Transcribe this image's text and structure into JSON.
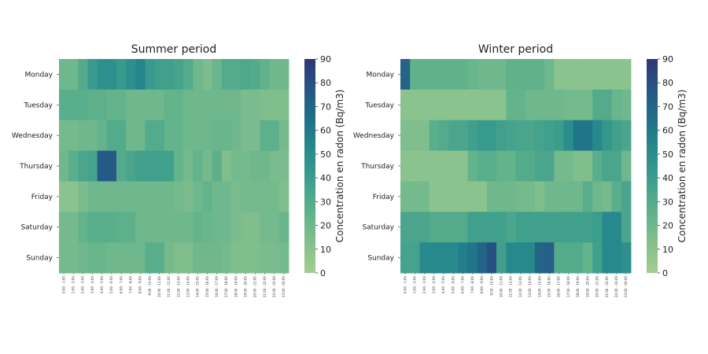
{
  "chart_data": [
    {
      "type": "heatmap",
      "title": "Summer period",
      "rows": [
        "Monday",
        "Tuesday",
        "Wednesday",
        "Thursday",
        "Friday",
        "Saturday",
        "Sunday"
      ],
      "columns": [
        "0:00 - 1:00",
        "1:00 - 2:00",
        "2:00 - 3:00",
        "3:00 - 4:00",
        "4:00 - 5:00",
        "5:00 - 6:00",
        "6:00 - 7:00",
        "7:00 - 8:00",
        "8:00 - 9:00",
        "9:00 - 10:00",
        "10:00 - 11:00",
        "11:00 - 12:00",
        "12:00 - 13:00",
        "13:00 - 14:00",
        "14:00 - 15:00",
        "15:00 - 16:00",
        "16:00 - 17:00",
        "17:00 - 18:00",
        "18:00 - 19:00",
        "19:00 - 20:00",
        "20:00 - 21:00",
        "21:00 - 22:00",
        "22:00 - 23:00",
        "23:00 - 00:00"
      ],
      "values": [
        [
          20,
          20,
          30,
          42,
          48,
          48,
          42,
          48,
          55,
          42,
          38,
          38,
          35,
          30,
          20,
          15,
          22,
          30,
          30,
          32,
          30,
          25,
          20,
          20
        ],
        [
          28,
          28,
          28,
          26,
          26,
          24,
          24,
          20,
          20,
          20,
          20,
          24,
          24,
          20,
          20,
          20,
          20,
          20,
          20,
          16,
          16,
          14,
          14,
          14
        ],
        [
          18,
          18,
          20,
          20,
          24,
          30,
          30,
          20,
          20,
          30,
          30,
          24,
          24,
          20,
          20,
          20,
          22,
          22,
          20,
          16,
          16,
          26,
          26,
          18
        ],
        [
          20,
          28,
          34,
          36,
          75,
          75,
          30,
          34,
          38,
          38,
          38,
          38,
          24,
          18,
          24,
          18,
          26,
          14,
          18,
          18,
          20,
          20,
          16,
          16
        ],
        [
          10,
          10,
          16,
          20,
          20,
          20,
          20,
          20,
          20,
          20,
          20,
          20,
          18,
          16,
          20,
          24,
          20,
          20,
          16,
          18,
          18,
          18,
          18,
          14
        ],
        [
          18,
          18,
          24,
          28,
          28,
          28,
          26,
          26,
          20,
          20,
          20,
          20,
          20,
          20,
          24,
          22,
          20,
          20,
          16,
          14,
          14,
          18,
          18,
          22
        ],
        [
          18,
          18,
          20,
          22,
          22,
          20,
          20,
          20,
          20,
          28,
          28,
          18,
          14,
          14,
          20,
          20,
          20,
          18,
          14,
          14,
          14,
          16,
          16,
          18
        ]
      ],
      "colorbar": {
        "label": "Concentration en radon (Bq/m3)",
        "ticks": [
          0,
          10,
          20,
          30,
          40,
          50,
          60,
          70,
          80,
          90
        ],
        "range": [
          0,
          90
        ]
      }
    },
    {
      "type": "heatmap",
      "title": "Winter period",
      "rows": [
        "Monday",
        "Tuesday",
        "Wednesday",
        "Thursday",
        "Friday",
        "Saturday",
        "Sunday"
      ],
      "columns": [
        "0:00 - 1:00",
        "1:00 - 2:00",
        "2:00 - 3:00",
        "3:00 - 4:00",
        "4:00 - 5:00",
        "5:00 - 6:00",
        "6:00 - 7:00",
        "7:00 - 8:00",
        "8:00 - 9:00",
        "9:00 - 10:00",
        "10:00 - 11:00",
        "11:00 - 12:00",
        "12:00 - 13:00",
        "13:00 - 14:00",
        "14:00 - 15:00",
        "15:00 - 16:00",
        "16:00 - 17:00",
        "17:00 - 18:00",
        "18:00 - 19:00",
        "19:00 - 20:00",
        "20:00 - 21:00",
        "21:00 - 22:00",
        "22:00 - 23:00",
        "23:00 - 00:00"
      ],
      "values": [
        [
          70,
          25,
          25,
          25,
          25,
          25,
          25,
          22,
          20,
          20,
          20,
          25,
          25,
          25,
          25,
          20,
          10,
          10,
          10,
          10,
          10,
          10,
          10,
          10
        ],
        [
          10,
          10,
          10,
          10,
          10,
          10,
          10,
          10,
          10,
          10,
          10,
          24,
          24,
          20,
          20,
          20,
          20,
          18,
          18,
          18,
          30,
          30,
          22,
          20
        ],
        [
          14,
          14,
          14,
          28,
          30,
          34,
          34,
          38,
          42,
          42,
          38,
          36,
          34,
          34,
          36,
          38,
          40,
          50,
          62,
          62,
          52,
          44,
          38,
          34
        ],
        [
          10,
          10,
          10,
          10,
          10,
          10,
          10,
          24,
          28,
          28,
          24,
          24,
          30,
          30,
          34,
          34,
          18,
          18,
          14,
          14,
          28,
          34,
          34,
          20
        ],
        [
          18,
          18,
          18,
          10,
          10,
          10,
          10,
          10,
          10,
          20,
          20,
          20,
          18,
          18,
          14,
          20,
          20,
          20,
          20,
          28,
          20,
          18,
          28,
          34
        ],
        [
          34,
          34,
          34,
          30,
          30,
          30,
          30,
          38,
          38,
          38,
          38,
          34,
          38,
          38,
          38,
          38,
          38,
          38,
          38,
          38,
          40,
          52,
          52,
          34
        ],
        [
          36,
          36,
          52,
          52,
          52,
          52,
          58,
          62,
          70,
          80,
          38,
          52,
          52,
          52,
          70,
          72,
          30,
          30,
          30,
          24,
          38,
          52,
          52,
          48
        ]
      ],
      "colorbar": {
        "label": "Concentration en radon (Bq/m3)",
        "ticks": [
          0,
          10,
          20,
          30,
          40,
          50,
          60,
          70,
          80,
          90
        ],
        "range": [
          0,
          90
        ]
      }
    }
  ]
}
